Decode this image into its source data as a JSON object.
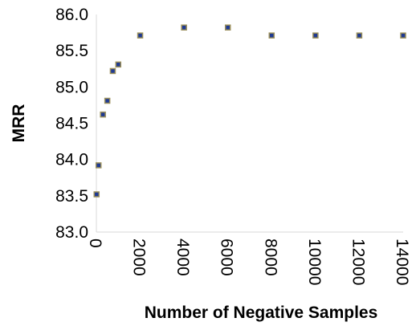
{
  "chart_data": {
    "type": "scatter",
    "title": "",
    "xlabel": "Number of Negative Samples",
    "ylabel": "MRR",
    "xlim": [
      0,
      14000
    ],
    "ylim": [
      83.0,
      86.0
    ],
    "x_ticks": [
      "0",
      "2000",
      "4000",
      "6000",
      "8000",
      "10000",
      "12000",
      "14000"
    ],
    "y_ticks": [
      "83.0",
      "83.5",
      "84.0",
      "84.5",
      "85.0",
      "85.5",
      "86.0"
    ],
    "grid": false,
    "legend": "none",
    "marker_fill": "#1f3a93",
    "marker_edge": "#9a8f5c",
    "series": [
      {
        "points": [
          {
            "x": 10,
            "y": 83.52
          },
          {
            "x": 100,
            "y": 83.92
          },
          {
            "x": 300,
            "y": 84.62
          },
          {
            "x": 500,
            "y": 84.81
          },
          {
            "x": 750,
            "y": 85.22
          },
          {
            "x": 1000,
            "y": 85.31
          },
          {
            "x": 2000,
            "y": 85.71
          },
          {
            "x": 4000,
            "y": 85.82
          },
          {
            "x": 6000,
            "y": 85.82
          },
          {
            "x": 8000,
            "y": 85.71
          },
          {
            "x": 10000,
            "y": 85.71
          },
          {
            "x": 12000,
            "y": 85.71
          },
          {
            "x": 14000,
            "y": 85.71
          }
        ]
      }
    ]
  }
}
